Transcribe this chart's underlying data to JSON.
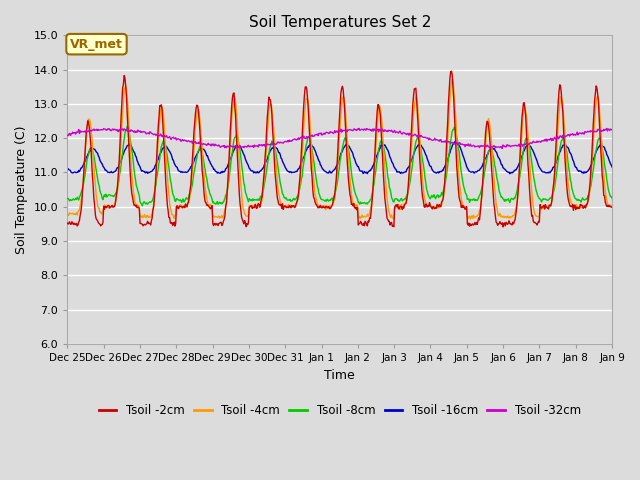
{
  "title": "Soil Temperatures Set 2",
  "xlabel": "Time",
  "ylabel": "Soil Temperature (C)",
  "ylim": [
    6.0,
    15.0
  ],
  "yticks": [
    6.0,
    7.0,
    8.0,
    9.0,
    10.0,
    11.0,
    12.0,
    13.0,
    14.0,
    15.0
  ],
  "bg_color": "#dcdcdc",
  "annotation_text": "VR_met",
  "annotation_bg": "#ffffcc",
  "annotation_border": "#996600",
  "colors": {
    "Tsoil -2cm": "#cc0000",
    "Tsoil -4cm": "#ff9900",
    "Tsoil -8cm": "#00cc00",
    "Tsoil -16cm": "#0000cc",
    "Tsoil -32cm": "#cc00cc"
  },
  "xtick_labels": [
    "Dec 25",
    "Dec 26",
    "Dec 27",
    "Dec 28",
    "Dec 29",
    "Dec 30",
    "Dec 31",
    "Jan 1",
    "Jan 2",
    "Jan 3",
    "Jan 4",
    "Jan 5",
    "Jan 6",
    "Jan 7",
    "Jan 8",
    "Jan 9"
  ],
  "figsize": [
    6.4,
    4.8
  ],
  "dpi": 100
}
